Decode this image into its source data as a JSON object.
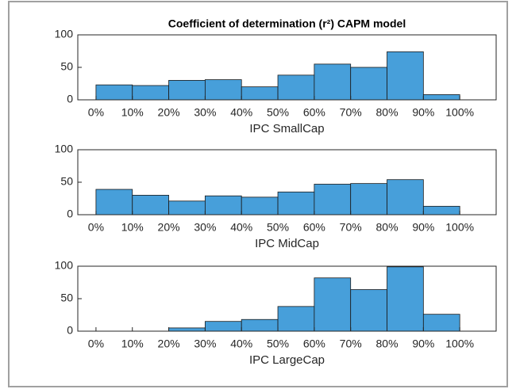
{
  "chart_data": [
    {
      "type": "histogram",
      "title": "Coefficient of determination (r²) CAPM model",
      "xlabel": "IPC SmallCap",
      "bins": [
        0,
        10,
        20,
        30,
        40,
        50,
        60,
        70,
        80,
        90,
        100
      ],
      "values": [
        23,
        22,
        30,
        31,
        20,
        38,
        55,
        50,
        74,
        8
      ],
      "color": "#3d9ad8",
      "xlim": [
        -5,
        110
      ],
      "ylim": [
        0,
        100
      ],
      "xticks": [
        {
          "value": 0,
          "label": "0%"
        },
        {
          "value": 10,
          "label": "10%"
        },
        {
          "value": 20,
          "label": "20%"
        },
        {
          "value": 30,
          "label": "30%"
        },
        {
          "value": 40,
          "label": "40%"
        },
        {
          "value": 50,
          "label": "50%"
        },
        {
          "value": 60,
          "label": "60%"
        },
        {
          "value": 70,
          "label": "70%"
        },
        {
          "value": 80,
          "label": "80%"
        },
        {
          "value": 90,
          "label": "90%"
        },
        {
          "value": 100,
          "label": "100%"
        }
      ],
      "yticks": [
        0,
        50,
        100
      ]
    },
    {
      "type": "histogram",
      "xlabel": "IPC MidCap",
      "bins": [
        0,
        10,
        20,
        30,
        40,
        50,
        60,
        70,
        80,
        90,
        100
      ],
      "values": [
        39,
        30,
        21,
        29,
        27,
        35,
        47,
        48,
        54,
        13
      ],
      "color": "#3d9ad8",
      "xlim": [
        -5,
        110
      ],
      "ylim": [
        0,
        100
      ],
      "xticks": [
        {
          "value": 0,
          "label": "0%"
        },
        {
          "value": 10,
          "label": "10%"
        },
        {
          "value": 20,
          "label": "20%"
        },
        {
          "value": 30,
          "label": "30%"
        },
        {
          "value": 40,
          "label": "40%"
        },
        {
          "value": 50,
          "label": "50%"
        },
        {
          "value": 60,
          "label": "60%"
        },
        {
          "value": 70,
          "label": "70%"
        },
        {
          "value": 80,
          "label": "80%"
        },
        {
          "value": 90,
          "label": "90%"
        },
        {
          "value": 100,
          "label": "100%"
        }
      ],
      "yticks": [
        0,
        50,
        100
      ]
    },
    {
      "type": "histogram",
      "xlabel": "IPC LargeCap",
      "bins": [
        0,
        10,
        20,
        30,
        40,
        50,
        60,
        70,
        80,
        90,
        100
      ],
      "values": [
        0,
        0,
        5,
        15,
        18,
        38,
        82,
        64,
        99,
        26
      ],
      "color": "#3d9ad8",
      "xlim": [
        -5,
        110
      ],
      "ylim": [
        0,
        100
      ],
      "xticks": [
        {
          "value": 0,
          "label": "0%"
        },
        {
          "value": 10,
          "label": "10%"
        },
        {
          "value": 20,
          "label": "20%"
        },
        {
          "value": 30,
          "label": "30%"
        },
        {
          "value": 40,
          "label": "40%"
        },
        {
          "value": 50,
          "label": "50%"
        },
        {
          "value": 60,
          "label": "60%"
        },
        {
          "value": 70,
          "label": "70%"
        },
        {
          "value": 80,
          "label": "80%"
        },
        {
          "value": 90,
          "label": "90%"
        },
        {
          "value": 100,
          "label": "100%"
        }
      ],
      "yticks": [
        0,
        50,
        100
      ]
    }
  ]
}
